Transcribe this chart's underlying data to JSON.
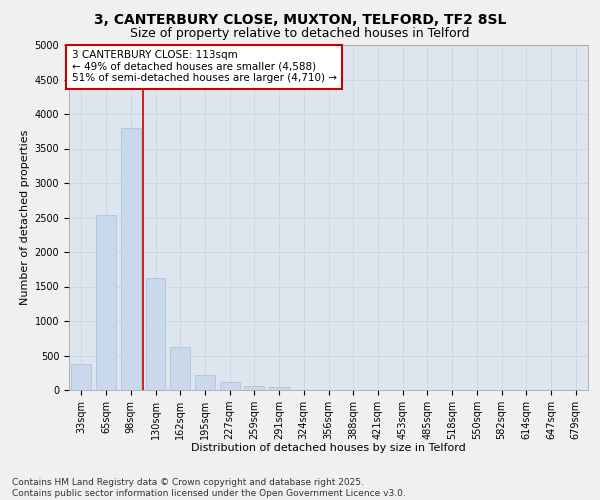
{
  "title_line1": "3, CANTERBURY CLOSE, MUXTON, TELFORD, TF2 8SL",
  "title_line2": "Size of property relative to detached houses in Telford",
  "xlabel": "Distribution of detached houses by size in Telford",
  "ylabel": "Number of detached properties",
  "categories": [
    "33sqm",
    "65sqm",
    "98sqm",
    "130sqm",
    "162sqm",
    "195sqm",
    "227sqm",
    "259sqm",
    "291sqm",
    "324sqm",
    "356sqm",
    "388sqm",
    "421sqm",
    "453sqm",
    "485sqm",
    "518sqm",
    "550sqm",
    "582sqm",
    "614sqm",
    "647sqm",
    "679sqm"
  ],
  "values": [
    370,
    2530,
    3790,
    1620,
    620,
    215,
    110,
    60,
    40,
    0,
    0,
    0,
    0,
    0,
    0,
    0,
    0,
    0,
    0,
    0,
    0
  ],
  "bar_color": "#c9d9eb",
  "bar_edge_color": "#a8bfd4",
  "vline_x": 2.5,
  "vline_color": "#cc0000",
  "annotation_text": "3 CANTERBURY CLOSE: 113sqm\n← 49% of detached houses are smaller (4,588)\n51% of semi-detached houses are larger (4,710) →",
  "annotation_box_facecolor": "#ffffff",
  "annotation_box_edgecolor": "#cc0000",
  "ylim": [
    0,
    5000
  ],
  "yticks": [
    0,
    500,
    1000,
    1500,
    2000,
    2500,
    3000,
    3500,
    4000,
    4500,
    5000
  ],
  "grid_color": "#ccd5de",
  "plot_bg_color": "#dde6ee",
  "fig_bg_color": "#f0f0f0",
  "footer_text": "Contains HM Land Registry data © Crown copyright and database right 2025.\nContains public sector information licensed under the Open Government Licence v3.0.",
  "title_fontsize": 10,
  "subtitle_fontsize": 9,
  "axis_label_fontsize": 8,
  "tick_fontsize": 7,
  "annotation_fontsize": 7.5,
  "footer_fontsize": 6.5
}
